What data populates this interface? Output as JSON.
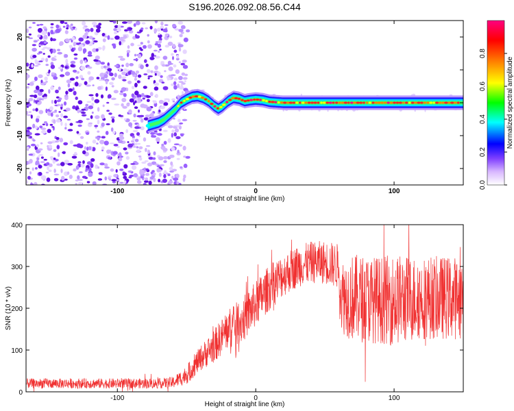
{
  "title": "S196.2026.092.08.56.C44",
  "chart_data": [
    {
      "type": "heatmap",
      "name": "spectrogram",
      "xlabel": "Height of straight line (km)",
      "ylabel": "Frequency (Hz)",
      "xlim": [
        -166,
        150
      ],
      "ylim": [
        -25,
        25
      ],
      "xticks": [
        -100,
        0,
        100
      ],
      "yticks": [
        -20,
        -10,
        0,
        10,
        20
      ],
      "noise_region_x": [
        -166,
        -55
      ],
      "signal_trace": {
        "x": [
          -78,
          -74,
          -70,
          -66,
          -62,
          -58,
          -54,
          -50,
          -46,
          -42,
          -38,
          -34,
          -30,
          -27,
          -24,
          -20,
          -16,
          -12,
          -8,
          -4,
          0,
          5,
          10,
          20,
          40,
          60,
          80,
          100,
          120,
          140,
          150
        ],
        "y": [
          -7,
          -6.5,
          -6,
          -5,
          -3.5,
          -2,
          0,
          1,
          1.8,
          2,
          1.5,
          0.5,
          -1,
          -1.8,
          -1,
          0.5,
          1.5,
          1.2,
          0.5,
          0.8,
          1,
          0.8,
          0.3,
          0,
          0,
          0,
          0,
          0,
          0,
          0,
          0
        ]
      },
      "colorbar": {
        "label": "Normalized spectral amplitude",
        "range": [
          0,
          1
        ],
        "ticks": [
          "0.0",
          "0.2",
          "0.4",
          "0.6",
          "0.8"
        ],
        "colors": [
          "#ffffff",
          "#d8b8ff",
          "#8040ff",
          "#0000ff",
          "#00ffff",
          "#00ff00",
          "#ffff00",
          "#ff8000",
          "#ff0000",
          "#ff0080"
        ]
      }
    },
    {
      "type": "line",
      "name": "snr",
      "xlabel": "Height of straight line (km)",
      "ylabel": "SNR (10 * v/v)",
      "xlim": [
        -166,
        150
      ],
      "ylim": [
        0,
        400
      ],
      "xticks": [
        -100,
        0,
        100
      ],
      "yticks": [
        0,
        100,
        200,
        300,
        400
      ],
      "color": "#f03030",
      "envelope": {
        "x": [
          -166,
          -70,
          -60,
          -50,
          -40,
          -30,
          -20,
          -10,
          0,
          10,
          20,
          30,
          40,
          50,
          60,
          62,
          70,
          80,
          90,
          100,
          110,
          120,
          130,
          140,
          150
        ],
        "base": [
          20,
          20,
          22,
          40,
          80,
          110,
          150,
          170,
          210,
          250,
          280,
          300,
          310,
          310,
          300,
          230,
          225,
          222,
          220,
          220,
          222,
          225,
          225,
          225,
          225
        ],
        "spread": [
          12,
          12,
          14,
          22,
          30,
          40,
          48,
          55,
          55,
          55,
          52,
          50,
          50,
          52,
          55,
          90,
          105,
          105,
          105,
          110,
          105,
          100,
          100,
          100,
          100
        ]
      }
    }
  ]
}
